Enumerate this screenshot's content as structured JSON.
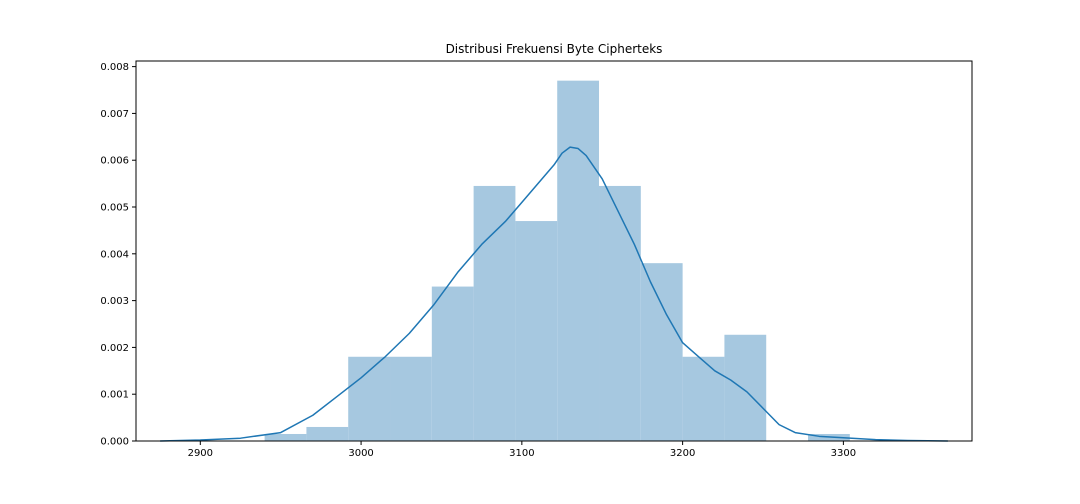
{
  "chart_data": {
    "type": "bar",
    "title": "Distribusi Frekuensi Byte Cipherteks",
    "xlabel": "",
    "ylabel": "",
    "xlim": [
      2860,
      3380
    ],
    "ylim": [
      0,
      0.00812
    ],
    "x_ticks": [
      2900,
      3000,
      3100,
      3200,
      3300
    ],
    "y_ticks": [
      0.0,
      0.001,
      0.002,
      0.003,
      0.004,
      0.005,
      0.006,
      0.007,
      0.008
    ],
    "x_tick_labels": [
      "2900",
      "3000",
      "3100",
      "3200",
      "3300"
    ],
    "y_tick_labels": [
      "0.000",
      "0.001",
      "0.002",
      "0.003",
      "0.004",
      "0.005",
      "0.006",
      "0.007",
      "0.008"
    ],
    "histogram": {
      "bin_edges": [
        2940,
        2966,
        2992,
        3018,
        3044,
        3070,
        3096,
        3122,
        3148,
        3174,
        3200,
        3226,
        3252,
        3278,
        3304
      ],
      "densities": [
        0.00015,
        0.0003,
        0.0018,
        0.0018,
        0.0033,
        0.00545,
        0.0047,
        0.0077,
        0.00545,
        0.0038,
        0.0018,
        0.00227,
        0.0,
        0.00015
      ],
      "color": "#a6c8e0"
    },
    "kde": {
      "color": "#1f77b4",
      "x": [
        2875,
        2900,
        2925,
        2950,
        2970,
        2985,
        3000,
        3015,
        3030,
        3045,
        3060,
        3075,
        3090,
        3100,
        3110,
        3120,
        3125,
        3130,
        3135,
        3140,
        3150,
        3160,
        3170,
        3180,
        3190,
        3200,
        3210,
        3220,
        3230,
        3240,
        3250,
        3260,
        3270,
        3285,
        3300,
        3320,
        3340,
        3365
      ],
      "y": [
        0.0,
        2e-05,
        6e-05,
        0.00018,
        0.00055,
        0.00095,
        0.00135,
        0.0018,
        0.0023,
        0.0029,
        0.0036,
        0.0042,
        0.0047,
        0.0051,
        0.0055,
        0.0059,
        0.00615,
        0.00628,
        0.00625,
        0.0061,
        0.0056,
        0.0049,
        0.0042,
        0.0034,
        0.0027,
        0.0021,
        0.0018,
        0.0015,
        0.0013,
        0.00105,
        0.0007,
        0.00035,
        0.00018,
        0.0001,
        7e-05,
        3e-05,
        1e-05,
        0.0
      ]
    }
  }
}
